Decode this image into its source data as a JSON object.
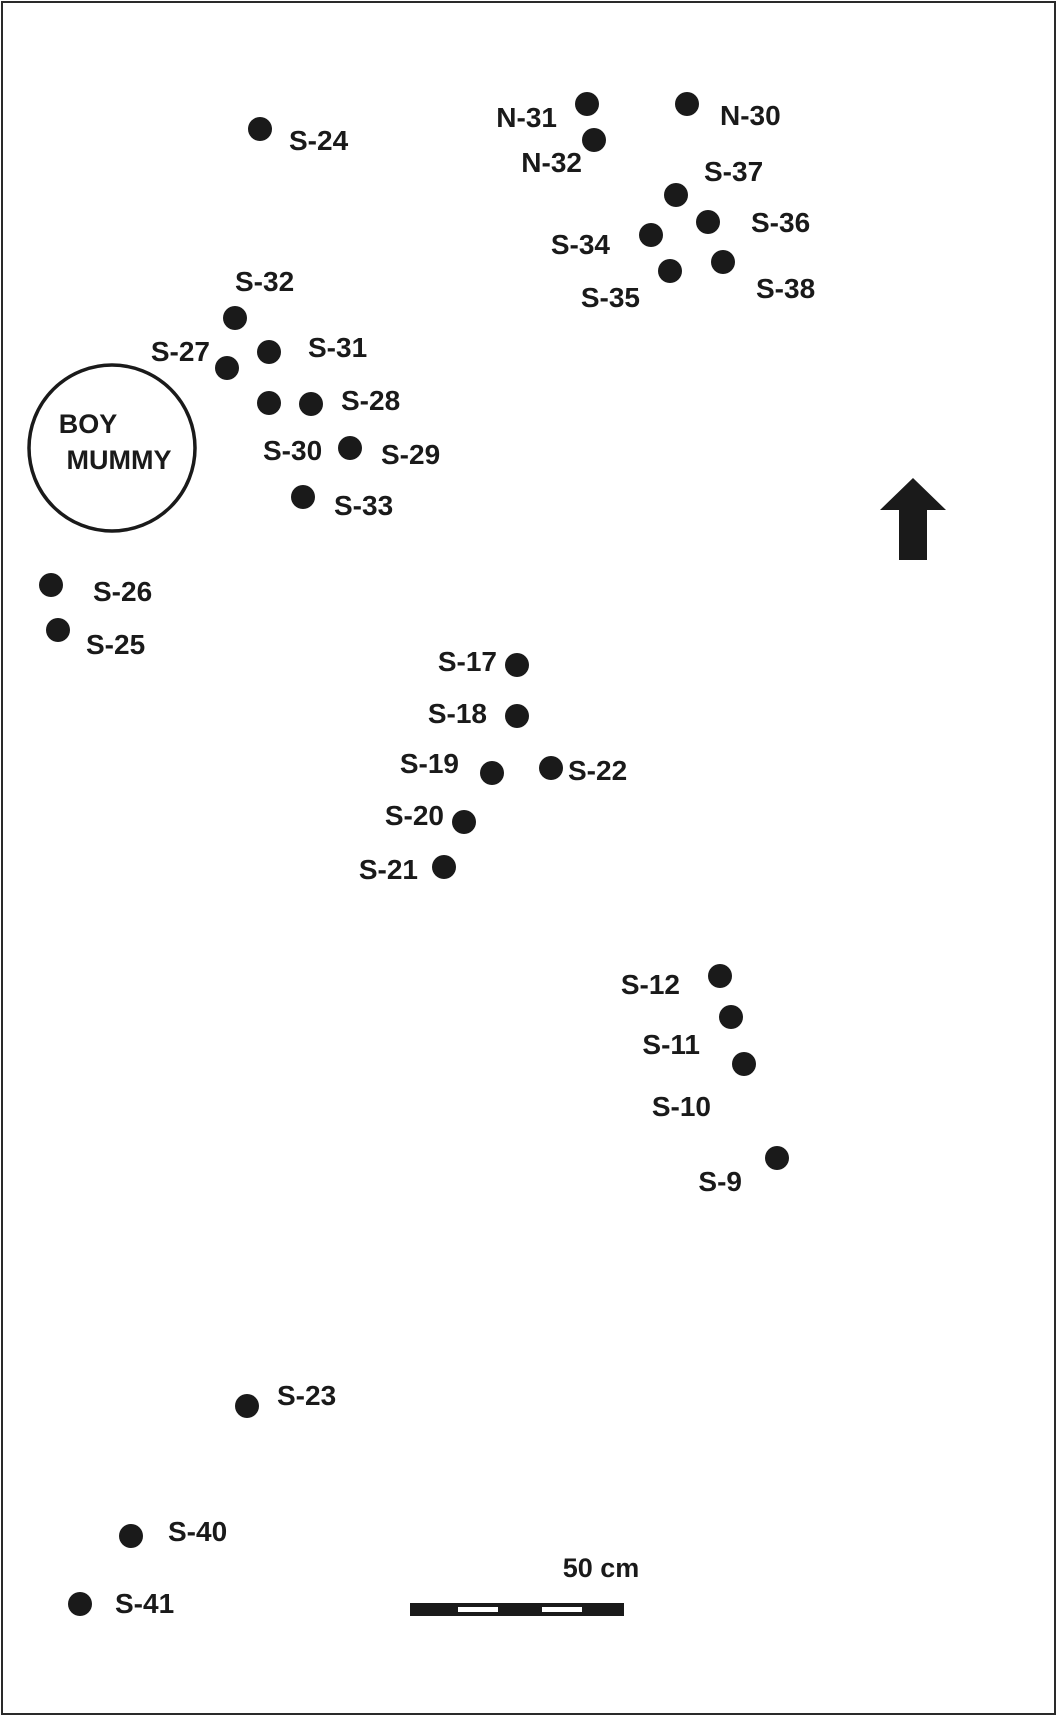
{
  "diagram": {
    "points": [
      {
        "id": "S-24"
      },
      {
        "id": "N-31"
      },
      {
        "id": "N-30"
      },
      {
        "id": "N-32"
      },
      {
        "id": "S-37"
      },
      {
        "id": "S-36"
      },
      {
        "id": "S-34"
      },
      {
        "id": "S-38"
      },
      {
        "id": "S-35"
      },
      {
        "id": "S-32"
      },
      {
        "id": "S-27"
      },
      {
        "id": "S-31"
      },
      {
        "id": "S-28"
      },
      {
        "id": "S-30"
      },
      {
        "id": "S-29"
      },
      {
        "id": "S-33"
      },
      {
        "id": "S-26"
      },
      {
        "id": "S-25"
      },
      {
        "id": "S-17"
      },
      {
        "id": "S-18"
      },
      {
        "id": "S-19"
      },
      {
        "id": "S-22"
      },
      {
        "id": "S-20"
      },
      {
        "id": "S-21"
      },
      {
        "id": "S-12"
      },
      {
        "id": "S-11"
      },
      {
        "id": "S-10"
      },
      {
        "id": "S-9"
      },
      {
        "id": "S-23"
      },
      {
        "id": "S-40"
      },
      {
        "id": "S-41"
      }
    ],
    "boy_mummy": {
      "line1": "BOY",
      "line2": "MUMMY"
    },
    "north_arrow": "arrow-up-icon",
    "scale_bar": {
      "label": "50 cm"
    },
    "colors": {
      "ink": "#1a1a1a",
      "paper": "#ffffff"
    }
  }
}
